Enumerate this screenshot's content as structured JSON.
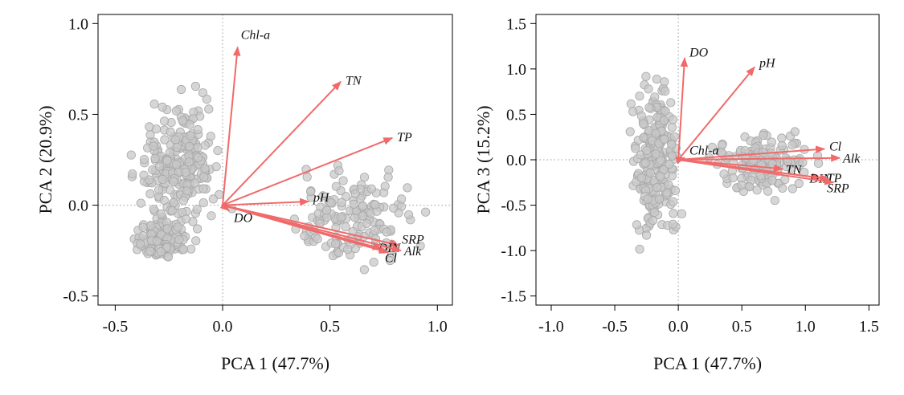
{
  "chart_data": [
    {
      "type": "scatter",
      "xlabel": "PCA 1 (47.7%)",
      "ylabel": "PCA 2 (20.9%)",
      "xlim": [
        -0.58,
        1.07
      ],
      "ylim": [
        -0.55,
        1.05
      ],
      "xticks": [
        -0.5,
        0.0,
        0.5,
        1.0
      ],
      "xtick_labels": [
        "-0.5",
        "0.0",
        "0.5",
        "1.0"
      ],
      "yticks": [
        -0.5,
        0.0,
        0.5,
        1.0
      ],
      "ytick_labels": [
        "-0.5",
        "0.0",
        "0.5",
        "1.0"
      ],
      "grid": false,
      "reference_lines": "dotted lines at x=0 and y=0",
      "point_color": "#c8c8c8",
      "point_edge_color": "#a8a8a8",
      "vector_color": "#f06a6a",
      "point_clusters": [
        {
          "x": [
            -0.45,
            0.05
          ],
          "y": [
            -0.3,
            0.75
          ]
        },
        {
          "x": [
            -0.45,
            -0.15
          ],
          "y": [
            -0.32,
            -0.05
          ]
        },
        {
          "x": [
            0.2,
            1.0
          ],
          "y": [
            -0.42,
            0.3
          ]
        }
      ],
      "vectors": [
        {
          "label": "Chl-a",
          "x": 0.07,
          "y": 0.87
        },
        {
          "label": "TN",
          "x": 0.55,
          "y": 0.68
        },
        {
          "label": "TP",
          "x": 0.79,
          "y": 0.37
        },
        {
          "label": "pH",
          "x": 0.4,
          "y": 0.02
        },
        {
          "label": "DO",
          "x": 0.03,
          "y": -0.03
        },
        {
          "label": "SRP",
          "x": 0.82,
          "y": -0.22
        },
        {
          "label": "DIN",
          "x": 0.74,
          "y": -0.24
        },
        {
          "label": "Alk",
          "x": 0.83,
          "y": -0.25
        },
        {
          "label": "Cl",
          "x": 0.77,
          "y": -0.26
        }
      ]
    },
    {
      "type": "scatter",
      "xlabel": "PCA 1 (47.7%)",
      "ylabel": "PCA 3 (15.2%)",
      "xlim": [
        -1.12,
        1.58
      ],
      "ylim": [
        -1.6,
        1.6
      ],
      "xticks": [
        -1.0,
        -0.5,
        0.0,
        0.5,
        1.0,
        1.5
      ],
      "xtick_labels": [
        "-1.0",
        "-0.5",
        "0.0",
        "0.5",
        "1.0",
        "1.5"
      ],
      "yticks": [
        -1.5,
        -1.0,
        -0.5,
        0.0,
        0.5,
        1.0,
        1.5
      ],
      "ytick_labels": [
        "-1.5",
        "-1.0",
        "-0.5",
        "0.0",
        "0.5",
        "1.0",
        "1.5"
      ],
      "grid": false,
      "reference_lines": "dotted lines at x=0 and y=0",
      "point_color": "#c8c8c8",
      "point_edge_color": "#a8a8a8",
      "vector_color": "#f06a6a",
      "point_clusters": [
        {
          "x": [
            -0.42,
            0.05
          ],
          "y": [
            -1.2,
            1.2
          ]
        },
        {
          "x": [
            0.1,
            1.2
          ],
          "y": [
            -0.5,
            0.45
          ]
        }
      ],
      "vectors": [
        {
          "label": "DO",
          "x": 0.05,
          "y": 1.12
        },
        {
          "label": "pH",
          "x": 0.6,
          "y": 1.02
        },
        {
          "label": "Chl-a",
          "x": 0.05,
          "y": 0.02
        },
        {
          "label": "Cl",
          "x": 1.15,
          "y": 0.12
        },
        {
          "label": "Alk",
          "x": 1.27,
          "y": 0.02
        },
        {
          "label": "TN",
          "x": 0.82,
          "y": -0.1
        },
        {
          "label": "DIN",
          "x": 1.12,
          "y": -0.2
        },
        {
          "label": "TP",
          "x": 1.18,
          "y": -0.21
        },
        {
          "label": "SRP",
          "x": 1.22,
          "y": -0.25
        }
      ]
    }
  ]
}
